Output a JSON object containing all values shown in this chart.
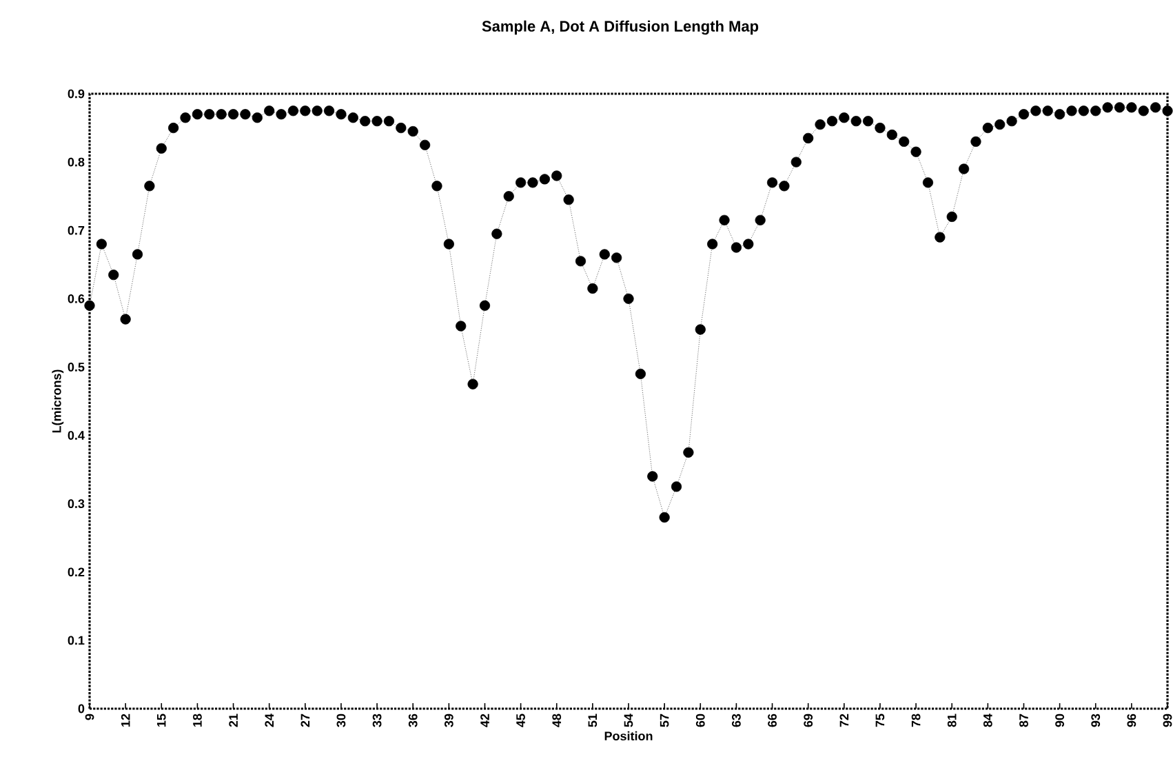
{
  "chart_data": {
    "type": "line",
    "title": "Sample A, Dot A Diffusion Length Map",
    "xlabel": "Position",
    "ylabel": "L(microns)",
    "x": [
      9,
      10,
      11,
      12,
      13,
      14,
      15,
      16,
      17,
      18,
      19,
      20,
      21,
      22,
      23,
      24,
      25,
      26,
      27,
      28,
      29,
      30,
      31,
      32,
      33,
      34,
      35,
      36,
      37,
      38,
      39,
      40,
      41,
      42,
      43,
      44,
      45,
      46,
      47,
      48,
      49,
      50,
      51,
      52,
      53,
      54,
      55,
      56,
      57,
      58,
      59,
      60,
      61,
      62,
      63,
      64,
      65,
      66,
      67,
      68,
      69,
      70,
      71,
      72,
      73,
      74,
      75,
      76,
      77,
      78,
      79,
      80,
      81,
      82,
      83,
      84,
      85,
      86,
      87,
      88,
      89,
      90,
      91,
      92,
      93,
      94,
      95,
      96,
      97,
      98,
      99
    ],
    "series": [
      {
        "color": "#000000",
        "values": [
          0.59,
          0.68,
          0.635,
          0.57,
          0.665,
          0.765,
          0.82,
          0.85,
          0.865,
          0.87,
          0.87,
          0.87,
          0.87,
          0.87,
          0.865,
          0.875,
          0.87,
          0.875,
          0.875,
          0.875,
          0.875,
          0.87,
          0.865,
          0.86,
          0.86,
          0.86,
          0.85,
          0.845,
          0.825,
          0.765,
          0.68,
          0.56,
          0.475,
          0.59,
          0.695,
          0.75,
          0.77,
          0.77,
          0.775,
          0.78,
          0.745,
          0.655,
          0.615,
          0.665,
          0.66,
          0.6,
          0.49,
          0.34,
          0.28,
          0.325,
          0.375,
          0.555,
          0.68,
          0.715,
          0.675,
          0.68,
          0.715,
          0.77,
          0.765,
          0.8,
          0.835,
          0.855,
          0.86,
          0.865,
          0.86,
          0.86,
          0.85,
          0.84,
          0.83,
          0.815,
          0.77,
          0.69,
          0.72,
          0.79,
          0.83,
          0.85,
          0.855,
          0.86,
          0.87,
          0.875,
          0.875,
          0.87,
          0.875,
          0.875,
          0.875,
          0.88,
          0.88,
          0.88,
          0.875,
          0.88,
          0.875
        ]
      }
    ],
    "xlim": [
      9,
      99
    ],
    "xticks": [
      9,
      12,
      15,
      18,
      21,
      24,
      27,
      30,
      33,
      36,
      39,
      42,
      45,
      48,
      51,
      54,
      57,
      60,
      63,
      66,
      69,
      72,
      75,
      78,
      81,
      84,
      87,
      90,
      93,
      96,
      99
    ],
    "ylim": [
      0,
      0.9
    ],
    "yticks": [
      0,
      0.1,
      0.2,
      0.3,
      0.4,
      0.5,
      0.6,
      0.7,
      0.8,
      0.9
    ],
    "grid": false,
    "marker": "circle",
    "line_style": "dotted"
  }
}
